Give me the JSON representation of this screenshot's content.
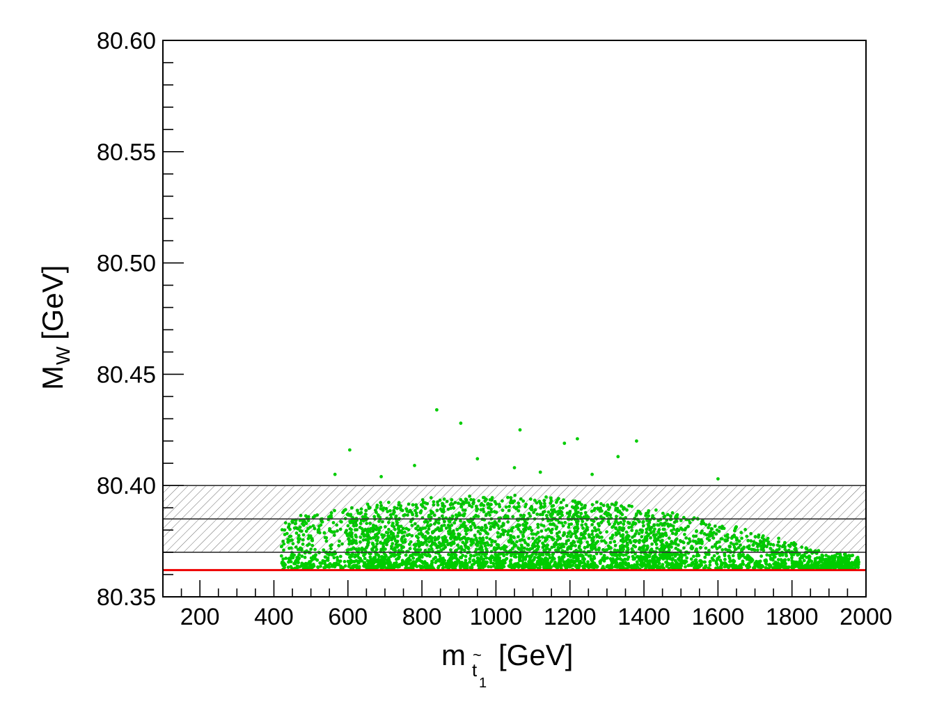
{
  "chart_data": {
    "type": "scatter",
    "title": "",
    "xlabel": {
      "main": "m",
      "subscript_base": "t",
      "subscript_tilde": "~",
      "subscript_index": "1",
      "unit": "[GeV]"
    },
    "ylabel": {
      "main": "M",
      "subscript": "W",
      "unit": "[GeV]"
    },
    "xlim": [
      100,
      2000
    ],
    "ylim": [
      80.35,
      80.6
    ],
    "x_major_ticks": [
      200,
      400,
      600,
      800,
      1000,
      1200,
      1400,
      1600,
      1800,
      2000
    ],
    "x_tick_labels": [
      "200",
      "400",
      "600",
      "800",
      "1000",
      "1200",
      "1400",
      "1600",
      "1800",
      "2000"
    ],
    "y_major_ticks": [
      80.35,
      80.4,
      80.45,
      80.5,
      80.55,
      80.6
    ],
    "y_tick_labels": [
      "80.35",
      "80.40",
      "80.45",
      "80.50",
      "80.55",
      "80.60"
    ],
    "grid": false,
    "legend": "none",
    "colors": {
      "points": "#00cc00",
      "sm_line": "#ee0000",
      "band": "#333333",
      "axes": "#000000"
    },
    "reference_lines": {
      "sm_prediction": 80.362,
      "measurement_central": 80.385,
      "measurement_band": [
        80.37,
        80.4
      ]
    },
    "scatter_region": {
      "x_range": [
        420,
        1980
      ],
      "y_floor": 80.363
    },
    "outliers": [
      [
        840,
        80.434
      ],
      [
        905,
        80.428
      ],
      [
        1065,
        80.425
      ],
      [
        1220,
        80.421
      ],
      [
        1380,
        80.42
      ],
      [
        1185,
        80.419
      ],
      [
        605,
        80.416
      ],
      [
        1330,
        80.413
      ],
      [
        950,
        80.412
      ],
      [
        1050,
        80.408
      ],
      [
        690,
        80.404
      ],
      [
        1120,
        80.406
      ],
      [
        780,
        80.409
      ],
      [
        1260,
        80.405
      ],
      [
        565,
        80.405
      ],
      [
        1600,
        80.403
      ]
    ]
  }
}
